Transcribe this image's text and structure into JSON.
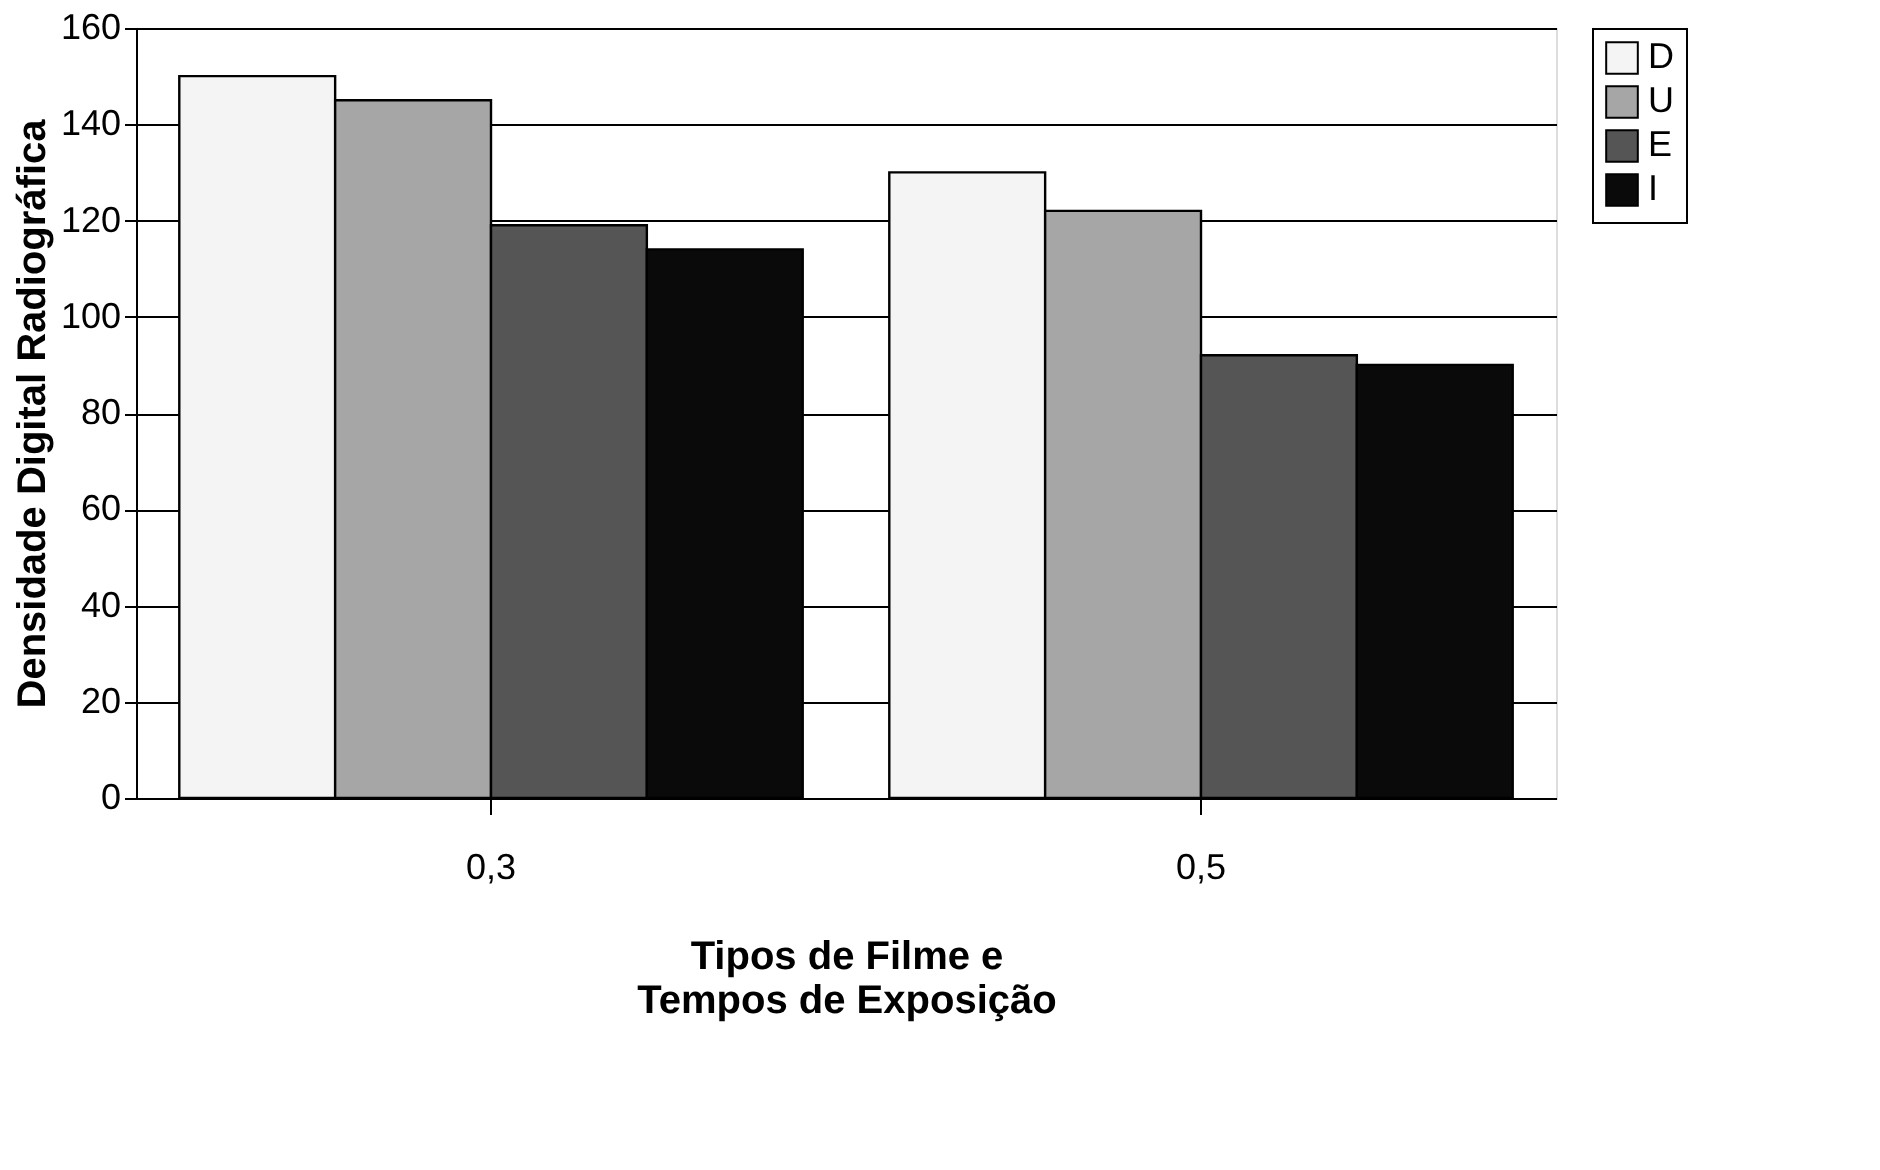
{
  "chart_data": {
    "type": "bar",
    "xlabel": "Tipos de Filme e\nTempos de Exposição",
    "ylabel": "Densidade Digital Radiográfica",
    "categories": [
      "0,3",
      "0,5"
    ],
    "series": [
      {
        "name": "D",
        "color": "#f4f4f4",
        "values": [
          150,
          130
        ]
      },
      {
        "name": "U",
        "color": "#a6a6a6",
        "values": [
          145,
          122
        ]
      },
      {
        "name": "E",
        "color": "#555555",
        "values": [
          119,
          92
        ]
      },
      {
        "name": "I",
        "color": "#0a0a0a",
        "values": [
          114,
          90
        ]
      }
    ],
    "ylim": [
      0,
      160
    ],
    "yticks": [
      0,
      20,
      40,
      60,
      80,
      100,
      120,
      140,
      160
    ],
    "grid": "y",
    "legend": "right"
  }
}
